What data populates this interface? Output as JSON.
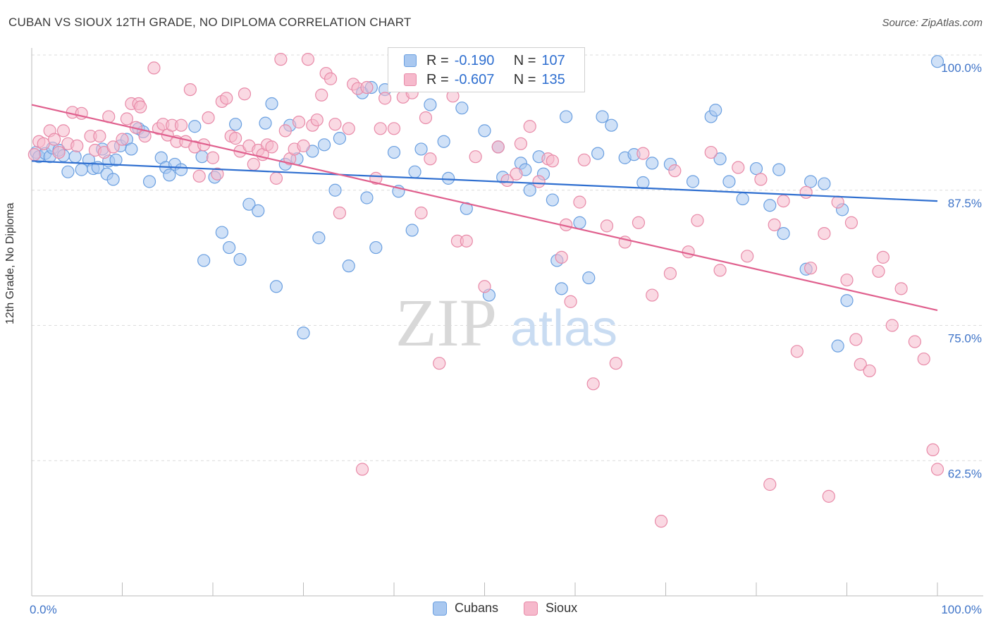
{
  "title": "CUBAN VS SIOUX 12TH GRADE, NO DIPLOMA CORRELATION CHART",
  "source": "Source: ZipAtlas.com",
  "watermark": {
    "zip": "ZIP",
    "atlas": "atlas"
  },
  "legend": {
    "rows": [
      {
        "r_label": "R =",
        "r_value": "-0.190",
        "n_label": "N =",
        "n_value": "107"
      },
      {
        "r_label": "R =",
        "r_value": "-0.607",
        "n_label": "N =",
        "n_value": "135"
      }
    ]
  },
  "colors": {
    "blue_fill": "#a9c8f0",
    "blue_stroke": "#6a9fe0",
    "blue_line": "#2f6fd0",
    "pink_fill": "#f6b9cc",
    "pink_stroke": "#e88aa8",
    "pink_line": "#e0608e",
    "tick_text": "#3f74c8",
    "grid": "#dcdcdc"
  },
  "chart_data": {
    "type": "scatter",
    "ylabel": "12th Grade, No Diploma",
    "xlim": [
      0,
      100
    ],
    "ylim": [
      50,
      100
    ],
    "x_tick_labels": [
      {
        "value": 0,
        "label": "0.0%"
      },
      {
        "value": 100,
        "label": "100.0%"
      }
    ],
    "y_tick_labels": [
      {
        "value": 100,
        "label": "100.0%"
      },
      {
        "value": 87.5,
        "label": "87.5%"
      },
      {
        "value": 75,
        "label": "75.0%"
      },
      {
        "value": 62.5,
        "label": "62.5%"
      }
    ],
    "grid": "horizontal dashed",
    "series": [
      {
        "name": "Cubans",
        "n": 107,
        "r": -0.19,
        "trend": {
          "x": [
            0,
            100
          ],
          "y": [
            90.2,
            86.5
          ]
        },
        "points": [
          [
            0.5,
            91.0
          ],
          [
            0.8,
            90.6
          ],
          [
            1.5,
            90.9
          ],
          [
            2.0,
            90.6
          ],
          [
            2.3,
            91.4
          ],
          [
            3.0,
            91.2
          ],
          [
            3.5,
            90.7
          ],
          [
            4.0,
            89.2
          ],
          [
            4.8,
            90.6
          ],
          [
            5.5,
            89.4
          ],
          [
            6.3,
            90.3
          ],
          [
            6.8,
            89.5
          ],
          [
            7.3,
            89.6
          ],
          [
            7.8,
            91.3
          ],
          [
            8.3,
            89.0
          ],
          [
            8.5,
            90.2
          ],
          [
            9.0,
            88.5
          ],
          [
            9.3,
            90.3
          ],
          [
            9.8,
            91.6
          ],
          [
            10.5,
            92.2
          ],
          [
            11.0,
            91.3
          ],
          [
            11.8,
            93.2
          ],
          [
            12.3,
            92.9
          ],
          [
            13.0,
            88.3
          ],
          [
            14.3,
            90.5
          ],
          [
            14.8,
            89.6
          ],
          [
            15.2,
            88.9
          ],
          [
            15.8,
            89.9
          ],
          [
            16.5,
            89.4
          ],
          [
            18.0,
            93.4
          ],
          [
            18.8,
            90.6
          ],
          [
            19.0,
            81.0
          ],
          [
            20.2,
            88.7
          ],
          [
            21.0,
            83.6
          ],
          [
            21.8,
            82.2
          ],
          [
            22.5,
            93.6
          ],
          [
            23.0,
            81.1
          ],
          [
            24.0,
            86.2
          ],
          [
            25.0,
            85.6
          ],
          [
            25.8,
            93.7
          ],
          [
            26.5,
            95.5
          ],
          [
            27.0,
            78.6
          ],
          [
            28.0,
            89.9
          ],
          [
            28.5,
            93.5
          ],
          [
            29.3,
            90.4
          ],
          [
            30.0,
            74.3
          ],
          [
            31.0,
            91.1
          ],
          [
            31.7,
            83.1
          ],
          [
            32.3,
            91.7
          ],
          [
            33.5,
            87.5
          ],
          [
            34.0,
            92.3
          ],
          [
            35.0,
            80.5
          ],
          [
            36.5,
            96.5
          ],
          [
            37.0,
            86.8
          ],
          [
            37.5,
            97.0
          ],
          [
            38.0,
            82.2
          ],
          [
            39.0,
            96.8
          ],
          [
            40.0,
            91.0
          ],
          [
            40.5,
            87.4
          ],
          [
            42.0,
            83.8
          ],
          [
            42.3,
            89.2
          ],
          [
            43.0,
            91.3
          ],
          [
            44.0,
            95.4
          ],
          [
            45.5,
            92.0
          ],
          [
            46.0,
            88.6
          ],
          [
            47.5,
            95.1
          ],
          [
            48.0,
            85.8
          ],
          [
            50.0,
            93.0
          ],
          [
            50.5,
            77.8
          ],
          [
            51.5,
            91.5
          ],
          [
            52.0,
            88.7
          ],
          [
            54.0,
            90.0
          ],
          [
            54.5,
            89.4
          ],
          [
            55.0,
            87.5
          ],
          [
            56.0,
            90.6
          ],
          [
            56.5,
            89.0
          ],
          [
            57.5,
            86.6
          ],
          [
            58.0,
            81.0
          ],
          [
            58.5,
            78.4
          ],
          [
            59.0,
            94.3
          ],
          [
            60.5,
            84.5
          ],
          [
            61.5,
            79.4
          ],
          [
            62.5,
            90.9
          ],
          [
            63.0,
            94.3
          ],
          [
            64.0,
            93.5
          ],
          [
            65.5,
            90.5
          ],
          [
            66.5,
            90.8
          ],
          [
            67.5,
            88.2
          ],
          [
            68.5,
            90.0
          ],
          [
            70.5,
            89.9
          ],
          [
            73.0,
            88.3
          ],
          [
            75.0,
            94.3
          ],
          [
            75.5,
            94.9
          ],
          [
            76.0,
            90.4
          ],
          [
            77.0,
            88.3
          ],
          [
            78.5,
            86.7
          ],
          [
            80.0,
            89.5
          ],
          [
            81.5,
            86.1
          ],
          [
            82.5,
            89.4
          ],
          [
            83.0,
            83.5
          ],
          [
            85.5,
            80.2
          ],
          [
            86.0,
            88.3
          ],
          [
            87.5,
            88.1
          ],
          [
            89.5,
            85.7
          ],
          [
            89.0,
            73.1
          ],
          [
            90.0,
            77.3
          ],
          [
            100.0,
            99.4
          ]
        ]
      },
      {
        "name": "Sioux",
        "n": 135,
        "r": -0.607,
        "trend": {
          "x": [
            0,
            100
          ],
          "y": [
            95.4,
            76.4
          ]
        },
        "points": [
          [
            0.3,
            90.8
          ],
          [
            0.8,
            92.0
          ],
          [
            1.3,
            91.8
          ],
          [
            2.0,
            93.0
          ],
          [
            2.5,
            92.2
          ],
          [
            3.0,
            91.0
          ],
          [
            3.5,
            93.0
          ],
          [
            4.0,
            91.8
          ],
          [
            4.5,
            94.7
          ],
          [
            5.0,
            91.6
          ],
          [
            5.5,
            94.6
          ],
          [
            6.5,
            92.5
          ],
          [
            7.0,
            91.2
          ],
          [
            7.5,
            92.5
          ],
          [
            8.0,
            91.0
          ],
          [
            8.5,
            94.3
          ],
          [
            9.0,
            91.5
          ],
          [
            10.0,
            92.2
          ],
          [
            10.5,
            94.1
          ],
          [
            11.0,
            95.5
          ],
          [
            11.5,
            93.3
          ],
          [
            11.8,
            95.5
          ],
          [
            12.0,
            95.2
          ],
          [
            12.5,
            92.5
          ],
          [
            13.5,
            98.8
          ],
          [
            14.0,
            93.2
          ],
          [
            14.5,
            93.6
          ],
          [
            15.0,
            92.6
          ],
          [
            15.5,
            93.5
          ],
          [
            16.0,
            92.0
          ],
          [
            16.5,
            93.5
          ],
          [
            17.0,
            92.0
          ],
          [
            17.5,
            96.8
          ],
          [
            18.0,
            91.5
          ],
          [
            18.5,
            88.8
          ],
          [
            19.0,
            91.7
          ],
          [
            19.5,
            94.2
          ],
          [
            20.0,
            90.5
          ],
          [
            20.5,
            89.0
          ],
          [
            21.0,
            95.7
          ],
          [
            21.5,
            96.0
          ],
          [
            22.0,
            92.5
          ],
          [
            22.5,
            92.3
          ],
          [
            23.0,
            91.1
          ],
          [
            23.5,
            96.4
          ],
          [
            24.0,
            91.6
          ],
          [
            24.5,
            89.9
          ],
          [
            25.0,
            91.2
          ],
          [
            25.5,
            90.8
          ],
          [
            26.0,
            91.7
          ],
          [
            26.5,
            91.5
          ],
          [
            27.0,
            88.6
          ],
          [
            27.5,
            99.6
          ],
          [
            28.0,
            93.0
          ],
          [
            28.5,
            90.4
          ],
          [
            29.0,
            91.3
          ],
          [
            29.5,
            93.8
          ],
          [
            30.0,
            91.6
          ],
          [
            30.5,
            99.6
          ],
          [
            31.0,
            93.5
          ],
          [
            31.5,
            94.0
          ],
          [
            32.0,
            96.3
          ],
          [
            32.5,
            98.3
          ],
          [
            33.0,
            97.8
          ],
          [
            33.5,
            93.6
          ],
          [
            34.0,
            85.4
          ],
          [
            35.0,
            93.2
          ],
          [
            35.5,
            97.3
          ],
          [
            36.0,
            96.9
          ],
          [
            36.5,
            61.7
          ],
          [
            37.0,
            97.0
          ],
          [
            38.0,
            88.6
          ],
          [
            38.5,
            93.2
          ],
          [
            39.0,
            96.0
          ],
          [
            40.0,
            93.2
          ],
          [
            41.0,
            96.1
          ],
          [
            41.5,
            99.5
          ],
          [
            42.0,
            96.5
          ],
          [
            43.0,
            85.4
          ],
          [
            43.5,
            94.2
          ],
          [
            44.0,
            90.4
          ],
          [
            45.0,
            71.5
          ],
          [
            46.5,
            96.2
          ],
          [
            47.0,
            82.8
          ],
          [
            48.0,
            82.8
          ],
          [
            49.0,
            90.6
          ],
          [
            50.0,
            78.6
          ],
          [
            51.5,
            91.5
          ],
          [
            52.5,
            88.4
          ],
          [
            53.5,
            89.0
          ],
          [
            54.0,
            91.8
          ],
          [
            55.0,
            93.4
          ],
          [
            56.0,
            88.3
          ],
          [
            57.0,
            90.4
          ],
          [
            57.5,
            90.2
          ],
          [
            58.5,
            81.3
          ],
          [
            59.0,
            84.3
          ],
          [
            59.5,
            77.2
          ],
          [
            60.5,
            86.4
          ],
          [
            61.0,
            90.3
          ],
          [
            62.0,
            69.6
          ],
          [
            63.5,
            84.2
          ],
          [
            64.5,
            71.5
          ],
          [
            65.5,
            82.7
          ],
          [
            67.0,
            84.5
          ],
          [
            67.5,
            90.9
          ],
          [
            68.5,
            77.8
          ],
          [
            69.5,
            56.9
          ],
          [
            70.5,
            79.8
          ],
          [
            71.0,
            89.3
          ],
          [
            72.5,
            81.8
          ],
          [
            73.5,
            84.7
          ],
          [
            75.0,
            91.0
          ],
          [
            76.0,
            80.1
          ],
          [
            78.0,
            89.6
          ],
          [
            79.0,
            81.4
          ],
          [
            80.5,
            88.5
          ],
          [
            81.5,
            60.3
          ],
          [
            82.0,
            84.3
          ],
          [
            83.0,
            86.5
          ],
          [
            84.5,
            72.6
          ],
          [
            85.5,
            87.3
          ],
          [
            86.0,
            80.3
          ],
          [
            87.5,
            83.5
          ],
          [
            88.0,
            59.2
          ],
          [
            89.0,
            86.4
          ],
          [
            90.0,
            79.2
          ],
          [
            90.5,
            84.5
          ],
          [
            91.0,
            73.7
          ],
          [
            91.5,
            71.4
          ],
          [
            92.5,
            70.8
          ],
          [
            93.5,
            80.0
          ],
          [
            94.0,
            81.3
          ],
          [
            95.0,
            75.0
          ],
          [
            96.0,
            78.4
          ],
          [
            97.5,
            73.5
          ],
          [
            98.5,
            71.9
          ],
          [
            99.5,
            63.5
          ],
          [
            100.0,
            61.7
          ]
        ]
      }
    ]
  }
}
